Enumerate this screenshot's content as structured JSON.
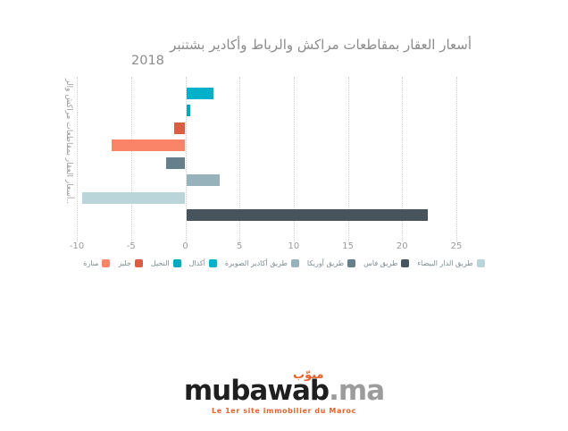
{
  "title": {
    "line1": "أسعار العقار بمقاطعات مراكش والرباط وأكادير بشتنبر",
    "line2": "2018",
    "color": "#8c8c8c"
  },
  "chart_data": {
    "type": "bar",
    "orientation": "horizontal",
    "title": "أسعار العقار بمقاطعات مراكش والرباط وأكادير بشتنبر 2018",
    "y_axis_label": "..أسعار العقار بمقاطعات مراكش والر",
    "xlim": [
      -10,
      25
    ],
    "x_ticks": [
      -10,
      -5,
      0,
      5,
      10,
      15,
      20,
      25
    ],
    "grid": "dotted-vertical",
    "legend_position": "bottom",
    "series": [
      {
        "slug": "agdal",
        "name": "أكدال",
        "value": 2.5,
        "color": "#00b1c9"
      },
      {
        "slug": "ennakhil",
        "name": "النخيل",
        "value": 0.4,
        "color": "#00a9bd"
      },
      {
        "slug": "gueliz",
        "name": "جليز",
        "value": -1.0,
        "color": "#dd5d43"
      },
      {
        "slug": "menara",
        "name": "منارة",
        "value": -6.8,
        "color": "#fa8468"
      },
      {
        "slug": "route-ourika",
        "name": "طريق أوريكا",
        "value": -1.8,
        "color": "#657f8b"
      },
      {
        "slug": "route-agadir-essaouira",
        "name": "طريق أكادير الصويرة",
        "value": 3.1,
        "color": "#97b2bb"
      },
      {
        "slug": "route-casablanca",
        "name": "طريق الدار البيضاء",
        "value": -9.5,
        "color": "#bad5da"
      },
      {
        "slug": "route-fes",
        "name": "طريق فاس",
        "value": 22.3,
        "color": "#47545c"
      }
    ],
    "legend_order": [
      "منارة",
      "جليز",
      "النخيل",
      "أكدال",
      "طريق أكادير الصويرة",
      "طريق أوريكا",
      "طريق فاس",
      "طريق الدار البيضاء"
    ]
  },
  "branding": {
    "arabic_mark": "مبوّب",
    "wordmark": "mubawab",
    "tld": ".ma",
    "tagline": "Le 1er site immobilier du Maroc",
    "orange": "#e8622d",
    "wordmark_color": "#1f1f1f",
    "tld_color": "#9c9c9c"
  }
}
